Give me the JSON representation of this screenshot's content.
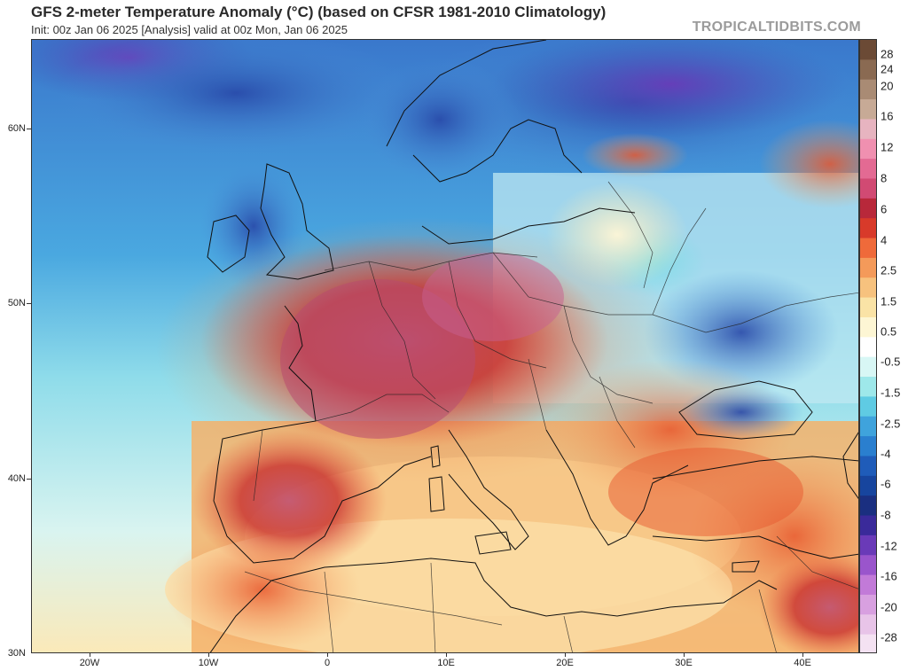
{
  "header": {
    "title": "GFS 2-meter Temperature Anomaly (°C) (based on CFSR 1981-2010 Climatology)",
    "subtitle": "Init: 00z Jan 06 2025   [Analysis]   valid at 00z Mon, Jan 06 2025",
    "credit": "TROPICALTIDBITS.COM"
  },
  "map": {
    "region": "Europe / Mediterranean",
    "lat_labels": [
      "60N",
      "50N",
      "40N",
      "30N"
    ],
    "lon_labels": [
      "20W",
      "10W",
      "0",
      "10E",
      "20E",
      "30E",
      "40E"
    ]
  },
  "colorbar": {
    "labels": [
      "28",
      "24",
      "20",
      "16",
      "12",
      "8",
      "6",
      "4",
      "2.5",
      "1.5",
      "0.5",
      "-0.5",
      "-1.5",
      "-2.5",
      "-4",
      "-6",
      "-8",
      "-12",
      "-16",
      "-20",
      "-28"
    ],
    "colors": [
      "#6b4a35",
      "#8a6a52",
      "#a98b74",
      "#c7aa96",
      "#e7b4c0",
      "#f090b0",
      "#e36a93",
      "#d14a73",
      "#b8283a",
      "#d83a2a",
      "#ef6a3a",
      "#f49a5a",
      "#f7c27e",
      "#fae3a6",
      "#fdf6d4",
      "#ffffff",
      "#d8f7f5",
      "#9ee8ea",
      "#5fcbe3",
      "#3fa3dc",
      "#2a7fcf",
      "#1f5cb9",
      "#17459e",
      "#1a2f80",
      "#3a2a9a",
      "#6a3ab8",
      "#9a55cc",
      "#c27ad8",
      "#d8a0e0",
      "#e8c4e8",
      "#f4e2f2"
    ]
  }
}
